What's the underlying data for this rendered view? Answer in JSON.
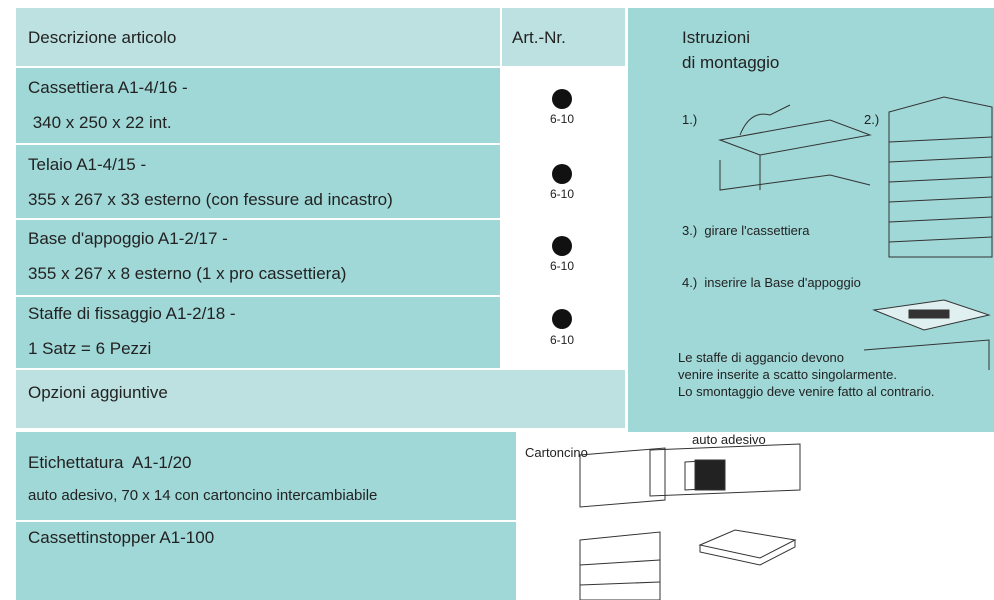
{
  "table": {
    "header": [
      "Descrizione articolo",
      "Art.-Nr."
    ],
    "rows": [
      {
        "lines": [
          "Cassettiera A1-4/16 -",
          " 340 x 250 x 22 int."
        ],
        "art_nr": "6-10"
      },
      {
        "lines": [
          "Telaio A1-4/15 -",
          "355 x 267 x 33 esterno (con fessure ad incastro)"
        ],
        "art_nr": "6-10"
      },
      {
        "lines": [
          "Base d'appoggio A1-2/17 -",
          "355 x 267 x 8 esterno (1 x pro cassettiera)"
        ],
        "art_nr": "6-10"
      },
      {
        "lines": [
          "Staffe di fissaggio A1-2/18 -",
          "1 Satz = 6 Pezzi"
        ],
        "art_nr": "6-10"
      }
    ]
  },
  "options": {
    "title": "Opzioni aggiuntive",
    "items": [
      {
        "lines": [
          "Etichettatura  A1-1/20",
          "auto adesivo, 70 x 14 con cartoncino intercambiabile"
        ],
        "labels": [
          "Cartoncino",
          "auto adesivo"
        ]
      },
      {
        "lines": [
          "Cassettinstopper A1-100"
        ]
      }
    ]
  },
  "instructions": {
    "title": [
      "Istruzioni",
      "di montaggio"
    ],
    "steps": [
      "1.)",
      "2.)",
      "3.)  girare l'cassettiera",
      "4.)  inserire la Base d'appoggio"
    ],
    "notes": [
      "Le staffe di aggancio devono",
      "venire inserite a scatto singolarmente.",
      "Lo smontaggio deve venire fatto al contrario."
    ]
  }
}
